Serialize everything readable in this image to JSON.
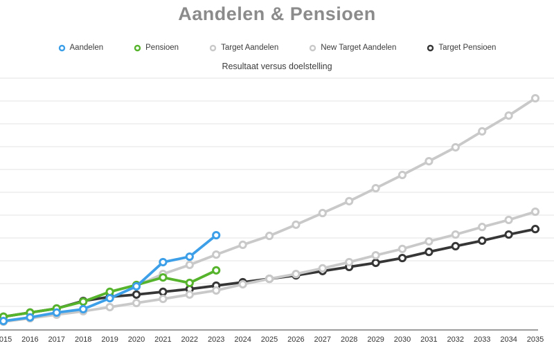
{
  "title": "Aandelen & Pensioen",
  "subtitle": "Resultaat versus doelstelling",
  "colors": {
    "title_text": "#8b8b8b",
    "label_text": "#3b3b3b",
    "gridline": "#f1f1f1",
    "axis_line": "#9c9c9c",
    "blue": "#3c9fe8",
    "green": "#56b32c",
    "light_gray": "#c9c9c9",
    "dark": "#363636"
  },
  "chart_data": {
    "type": "line",
    "title": "Aandelen & Pensioen",
    "subtitle": "Resultaat versus doelstelling",
    "legend_position": "top",
    "grid": "horizontal-only",
    "x_ticks": [
      2015,
      2016,
      2017,
      2018,
      2019,
      2020,
      2021,
      2022,
      2023,
      2024,
      2025,
      2026,
      2027,
      2028,
      2029,
      2030,
      2031,
      2032,
      2033,
      2034,
      2035
    ],
    "y_axis": {
      "labels_visible": false,
      "note": "no y tick labels shown; values estimated in gridline units (1 unit = 1 gridline step, baseline = 0)",
      "range": [
        0,
        11.3
      ],
      "gridline_step": 1
    },
    "series": [
      {
        "name": "Aandelen",
        "color": "#3c9fe8",
        "marker": "open-circle",
        "years": [
          2015,
          2016,
          2017,
          2018,
          2019,
          2020,
          2021,
          2022,
          2023
        ],
        "values": [
          0.36,
          0.52,
          0.73,
          0.88,
          1.36,
          1.88,
          2.94,
          3.18,
          4.12
        ]
      },
      {
        "name": "Pensioen",
        "color": "#56b32c",
        "marker": "open-circle",
        "years": [
          2015,
          2016,
          2017,
          2018,
          2019,
          2020,
          2021,
          2022,
          2023
        ],
        "values": [
          0.55,
          0.73,
          0.91,
          1.21,
          1.64,
          1.94,
          2.27,
          2.03,
          2.58
        ]
      },
      {
        "name": "Target Aandelen",
        "color": "#c9c9c9",
        "marker": "open-circle",
        "years": [
          2015,
          2016,
          2017,
          2018,
          2019,
          2020,
          2021,
          2022,
          2023,
          2024,
          2025,
          2026,
          2027,
          2028,
          2029,
          2030,
          2031,
          2032,
          2033,
          2034,
          2035
        ],
        "values": [
          0.33,
          0.48,
          0.64,
          0.79,
          0.97,
          1.15,
          1.33,
          1.52,
          1.7,
          1.97,
          2.21,
          2.42,
          2.67,
          2.94,
          3.24,
          3.52,
          3.85,
          4.15,
          4.48,
          4.79,
          5.15
        ]
      },
      {
        "name": "New Target Aandelen",
        "color": "#c9c9c9",
        "marker": "open-circle",
        "years": [
          2020,
          2021,
          2022,
          2023,
          2024,
          2025,
          2026,
          2027,
          2028,
          2029,
          2030,
          2031,
          2032,
          2033,
          2034,
          2035
        ],
        "values": [
          1.91,
          2.42,
          2.82,
          3.27,
          3.7,
          4.09,
          4.58,
          5.09,
          5.61,
          6.18,
          6.76,
          7.36,
          7.97,
          8.67,
          9.36,
          10.12
        ]
      },
      {
        "name": "Target Pensioen",
        "color": "#363636",
        "marker": "open-circle",
        "years": [
          2015,
          2016,
          2017,
          2018,
          2019,
          2020,
          2021,
          2022,
          2023,
          2024,
          2025,
          2026,
          2027,
          2028,
          2029,
          2030,
          2031,
          2032,
          2033,
          2034,
          2035
        ],
        "values": [
          0.55,
          0.73,
          0.91,
          1.24,
          1.42,
          1.52,
          1.64,
          1.76,
          1.91,
          2.06,
          2.21,
          2.36,
          2.55,
          2.73,
          2.91,
          3.12,
          3.39,
          3.64,
          3.88,
          4.15,
          4.39
        ]
      }
    ]
  }
}
